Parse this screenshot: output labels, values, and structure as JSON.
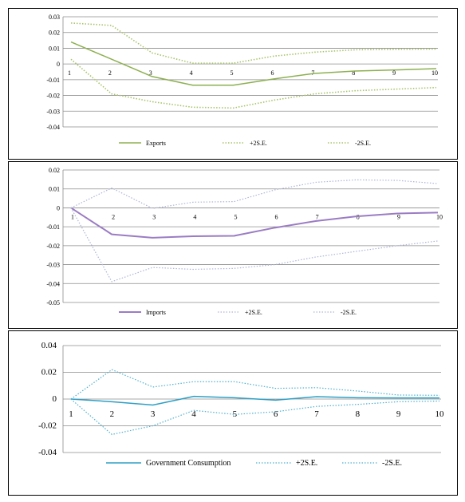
{
  "chart_data": [
    {
      "type": "line",
      "x": [
        1,
        2,
        3,
        4,
        5,
        6,
        7,
        8,
        9,
        10
      ],
      "ylim": [
        -0.04,
        0.03
      ],
      "yticks": [
        "0.03",
        "0.02",
        "0.01",
        "0",
        "-0.01",
        "-0.02",
        "-0.03",
        "-0.04"
      ],
      "grid": true,
      "legend": "bottom",
      "colors": {
        "main": "#8db050",
        "band": "#a7c46a"
      },
      "series": [
        {
          "name": "Exports",
          "style": "solid",
          "values": [
            0.014,
            0.003,
            -0.008,
            -0.0135,
            -0.0135,
            -0.0095,
            -0.006,
            -0.0045,
            -0.0038,
            -0.003
          ]
        },
        {
          "name": "+2S.E.",
          "style": "dotted",
          "values": [
            0.026,
            0.0245,
            0.007,
            0.0005,
            0.0005,
            0.005,
            0.0075,
            0.009,
            0.0093,
            0.0095
          ]
        },
        {
          "name": "-2S.E.",
          "style": "dotted",
          "values": [
            0.003,
            -0.019,
            -0.024,
            -0.0275,
            -0.028,
            -0.023,
            -0.019,
            -0.017,
            -0.016,
            -0.015
          ]
        }
      ]
    },
    {
      "type": "line",
      "x": [
        1,
        2,
        3,
        4,
        5,
        6,
        7,
        8,
        9,
        10
      ],
      "ylim": [
        -0.05,
        0.02
      ],
      "yticks": [
        "0.02",
        "0.01",
        "0",
        "-0.01",
        "-0.02",
        "-0.03",
        "-0.04",
        "-0.05"
      ],
      "grid": true,
      "legend": "bottom",
      "colors": {
        "main": "#9b7cc4",
        "band": "#aeb4d8"
      },
      "series": [
        {
          "name": "Imports",
          "style": "solid",
          "values": [
            0.0,
            -0.014,
            -0.0158,
            -0.015,
            -0.0148,
            -0.0105,
            -0.007,
            -0.0045,
            -0.003,
            -0.0025
          ]
        },
        {
          "name": "+2S.E.",
          "style": "dotted",
          "values": [
            0.0,
            0.0105,
            -0.0003,
            0.003,
            0.0033,
            0.0095,
            0.0135,
            0.0148,
            0.0145,
            0.0128
          ]
        },
        {
          "name": "-2S.E.",
          "style": "dotted",
          "values": [
            0.0,
            -0.039,
            -0.0315,
            -0.0325,
            -0.032,
            -0.03,
            -0.026,
            -0.023,
            -0.02,
            -0.0175
          ]
        }
      ]
    },
    {
      "type": "line",
      "x": [
        1,
        2,
        3,
        4,
        5,
        6,
        7,
        8,
        9,
        10
      ],
      "ylim": [
        -0.04,
        0.04
      ],
      "yticks": [
        "0.04",
        "0.02",
        "0",
        "-0.02",
        "-0.04"
      ],
      "grid": true,
      "legend": "bottom",
      "colors": {
        "main": "#2f9fc4",
        "band": "#4fb0d0"
      },
      "series": [
        {
          "name": "Government Consumption",
          "style": "solid",
          "values": [
            0.0,
            -0.002,
            -0.0045,
            0.002,
            0.001,
            -0.0008,
            0.0018,
            0.001,
            0.0008,
            0.0008
          ]
        },
        {
          "name": "+2S.E.",
          "style": "dotted",
          "values": [
            0.0,
            0.022,
            0.009,
            0.013,
            0.013,
            0.008,
            0.0085,
            0.006,
            0.003,
            0.0028
          ]
        },
        {
          "name": "-2S.E.",
          "style": "dotted",
          "values": [
            0.0,
            -0.0265,
            -0.02,
            -0.0085,
            -0.0115,
            -0.0095,
            -0.0055,
            -0.004,
            -0.002,
            -0.0015
          ]
        }
      ]
    }
  ]
}
